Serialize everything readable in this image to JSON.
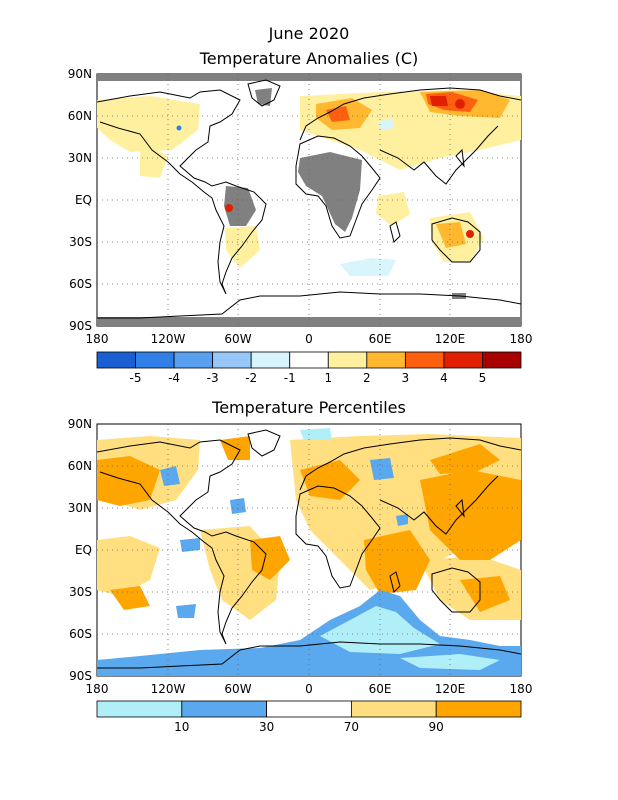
{
  "page": {
    "title_line1": "June 2020",
    "title_line2": "Temperature Anomalies (C)"
  },
  "map1": {
    "title": "Temperature Anomalies (C)",
    "lat_labels": [
      "90N",
      "60N",
      "30N",
      "EQ",
      "30S",
      "60S",
      "90S"
    ],
    "lon_labels": [
      "180",
      "120W",
      "60W",
      "0",
      "60E",
      "120E",
      "180"
    ],
    "colorbar": {
      "colors": [
        "#1a5fd1",
        "#2f7fe6",
        "#5aa0f0",
        "#98c8f8",
        "#d8f4fc",
        "#ffffff",
        "#fff0a0",
        "#ffb830",
        "#ff6010",
        "#e02000",
        "#a80000"
      ],
      "labels": [
        "-5",
        "-4",
        "-3",
        "-2",
        "-1",
        "1",
        "2",
        "3",
        "4",
        "5"
      ]
    }
  },
  "map2": {
    "title": "Temperature Percentiles",
    "lat_labels": [
      "90N",
      "60N",
      "30N",
      "EQ",
      "30S",
      "60S",
      "90S"
    ],
    "lon_labels": [
      "180",
      "120W",
      "60W",
      "0",
      "60E",
      "120E",
      "180"
    ],
    "colorbar": {
      "colors": [
        "#b0eef8",
        "#5aa8ee",
        "#ffffff",
        "#ffdf80",
        "#ffa500"
      ],
      "labels": [
        "10",
        "30",
        "70",
        "90"
      ]
    }
  },
  "colors": {
    "missing": "#808080",
    "coast": "#000000"
  }
}
